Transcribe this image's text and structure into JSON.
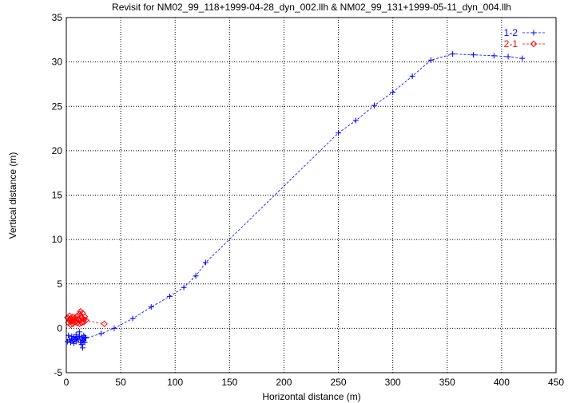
{
  "chart_data": {
    "type": "line",
    "title": "Revisit for NM02_99_118+1999-04-28_dyn_002.llh & NM02_99_131+1999-05-11_dyn_004.llh",
    "xlabel": "Horizontal distance (m)",
    "ylabel": "Vertical distance (m)",
    "xlim": [
      0,
      450
    ],
    "ylim": [
      -5,
      35
    ],
    "xticks": [
      0,
      50,
      100,
      150,
      200,
      250,
      300,
      350,
      400,
      450
    ],
    "yticks": [
      -5,
      0,
      5,
      10,
      15,
      20,
      25,
      30,
      35
    ],
    "grid": true,
    "legend": "top-right",
    "series": [
      {
        "name": "1-2",
        "color": "#0000ff",
        "marker": "plus",
        "points": [
          [
            1,
            -1.5
          ],
          [
            2,
            -0.8
          ],
          [
            3,
            -1.3
          ],
          [
            4,
            -1.6
          ],
          [
            5,
            -0.9
          ],
          [
            5,
            -1.2
          ],
          [
            6,
            -1.4
          ],
          [
            7,
            -1.0
          ],
          [
            7,
            -1.7
          ],
          [
            8,
            -1.2
          ],
          [
            9,
            -0.7
          ],
          [
            9,
            -1.5
          ],
          [
            10,
            -1.1
          ],
          [
            11,
            -1.3
          ],
          [
            12,
            -0.4
          ],
          [
            12,
            -0.9
          ],
          [
            13,
            -1.6
          ],
          [
            14,
            -1.0
          ],
          [
            14,
            -1.8
          ],
          [
            15,
            -1.2
          ],
          [
            15,
            -2.2
          ],
          [
            16,
            -0.8
          ],
          [
            16,
            -1.4
          ],
          [
            17,
            -1.0
          ],
          [
            17,
            -1.6
          ],
          [
            18,
            -1.1
          ],
          [
            32,
            -0.6
          ],
          [
            44,
            0.0
          ],
          [
            61,
            1.1
          ],
          [
            78,
            2.4
          ],
          [
            95,
            3.6
          ],
          [
            108,
            4.6
          ],
          [
            119,
            5.9
          ],
          [
            128,
            7.4
          ],
          [
            250,
            22.0
          ],
          [
            266,
            23.4
          ],
          [
            283,
            25.1
          ],
          [
            300,
            26.6
          ],
          [
            318,
            28.4
          ],
          [
            335,
            30.2
          ],
          [
            355,
            30.9
          ],
          [
            374,
            30.8
          ],
          [
            393,
            30.7
          ],
          [
            406,
            30.6
          ],
          [
            419,
            30.4
          ]
        ]
      },
      {
        "name": "2-1",
        "color": "#ff0000",
        "marker": "diamond",
        "points": [
          [
            1,
            1.2
          ],
          [
            2,
            0.6
          ],
          [
            3,
            1.4
          ],
          [
            3,
            0.9
          ],
          [
            4,
            0.4
          ],
          [
            4,
            1.1
          ],
          [
            5,
            0.8
          ],
          [
            6,
            1.3
          ],
          [
            6,
            0.5
          ],
          [
            7,
            1.0
          ],
          [
            8,
            0.7
          ],
          [
            8,
            1.2
          ],
          [
            9,
            0.9
          ],
          [
            10,
            0.6
          ],
          [
            10,
            1.4
          ],
          [
            11,
            1.0
          ],
          [
            12,
            0.5
          ],
          [
            12,
            1.6
          ],
          [
            13,
            1.9
          ],
          [
            13,
            0.9
          ],
          [
            14,
            1.2
          ],
          [
            14,
            0.6
          ],
          [
            15,
            1.7
          ],
          [
            16,
            1.0
          ],
          [
            16,
            0.7
          ],
          [
            17,
            1.3
          ],
          [
            18,
            0.9
          ],
          [
            35,
            0.5
          ]
        ]
      }
    ]
  }
}
